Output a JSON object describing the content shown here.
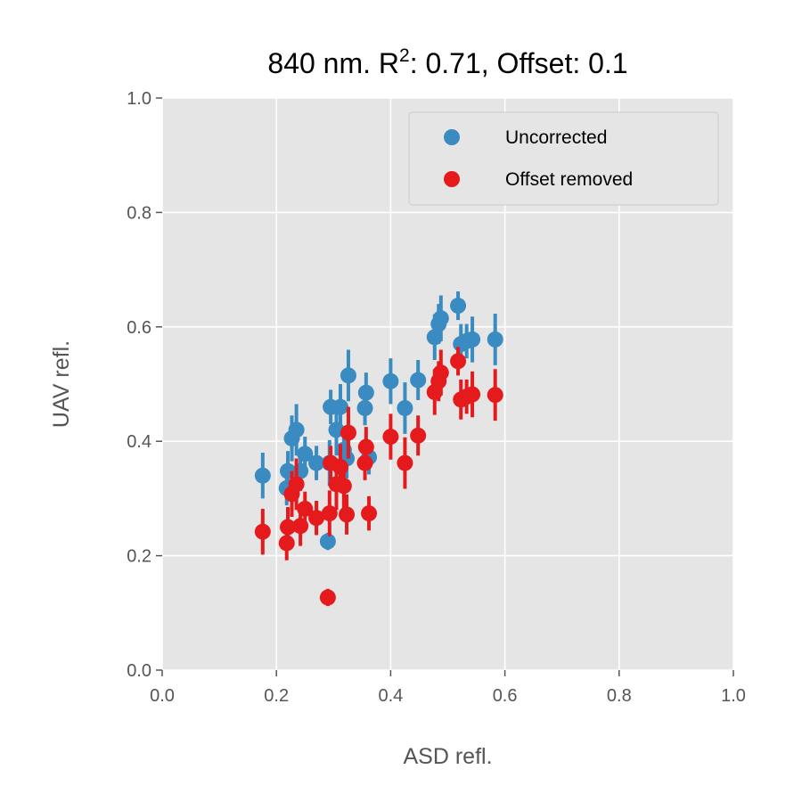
{
  "chart_data": {
    "type": "scatter",
    "title_main": "840 nm. R",
    "title_sup": "2",
    "title_rest": ": 0.71, Offset: 0.1",
    "xlabel": "ASD refl.",
    "ylabel": "UAV refl.",
    "xlim": [
      0,
      1
    ],
    "ylim": [
      0,
      1
    ],
    "xticks": [
      "0.0",
      "0.2",
      "0.4",
      "0.6",
      "0.8",
      "1.0"
    ],
    "yticks": [
      "0.0",
      "0.2",
      "0.4",
      "0.6",
      "0.8",
      "1.0"
    ],
    "grid": true,
    "legend_position": "top-right",
    "series": [
      {
        "name": "Uncorrected",
        "color": "#3a8bc2",
        "points": [
          {
            "x": 0.176,
            "y": 0.34,
            "err": 0.04
          },
          {
            "x": 0.218,
            "y": 0.318,
            "err": 0.03
          },
          {
            "x": 0.22,
            "y": 0.348,
            "err": 0.035
          },
          {
            "x": 0.227,
            "y": 0.405,
            "err": 0.04
          },
          {
            "x": 0.235,
            "y": 0.42,
            "err": 0.045
          },
          {
            "x": 0.242,
            "y": 0.348,
            "err": 0.035
          },
          {
            "x": 0.25,
            "y": 0.378,
            "err": 0.03
          },
          {
            "x": 0.27,
            "y": 0.362,
            "err": 0.03
          },
          {
            "x": 0.29,
            "y": 0.225,
            "err": 0.015
          },
          {
            "x": 0.293,
            "y": 0.362,
            "err": 0.04
          },
          {
            "x": 0.295,
            "y": 0.46,
            "err": 0.03
          },
          {
            "x": 0.305,
            "y": 0.42,
            "err": 0.045
          },
          {
            "x": 0.312,
            "y": 0.46,
            "err": 0.04
          },
          {
            "x": 0.318,
            "y": 0.385,
            "err": 0.04
          },
          {
            "x": 0.323,
            "y": 0.37,
            "err": 0.035
          },
          {
            "x": 0.326,
            "y": 0.515,
            "err": 0.045
          },
          {
            "x": 0.355,
            "y": 0.458,
            "err": 0.03
          },
          {
            "x": 0.357,
            "y": 0.485,
            "err": 0.035
          },
          {
            "x": 0.362,
            "y": 0.372,
            "err": 0.03
          },
          {
            "x": 0.4,
            "y": 0.505,
            "err": 0.04
          },
          {
            "x": 0.425,
            "y": 0.458,
            "err": 0.045
          },
          {
            "x": 0.448,
            "y": 0.507,
            "err": 0.035
          },
          {
            "x": 0.477,
            "y": 0.582,
            "err": 0.04
          },
          {
            "x": 0.484,
            "y": 0.605,
            "err": 0.035
          },
          {
            "x": 0.488,
            "y": 0.615,
            "err": 0.04
          },
          {
            "x": 0.518,
            "y": 0.637,
            "err": 0.025
          },
          {
            "x": 0.523,
            "y": 0.57,
            "err": 0.035
          },
          {
            "x": 0.533,
            "y": 0.575,
            "err": 0.03
          },
          {
            "x": 0.543,
            "y": 0.578,
            "err": 0.04
          },
          {
            "x": 0.583,
            "y": 0.578,
            "err": 0.045
          }
        ]
      },
      {
        "name": "Offset removed",
        "color": "#e41a1c",
        "points": [
          {
            "x": 0.176,
            "y": 0.242,
            "err": 0.04
          },
          {
            "x": 0.218,
            "y": 0.222,
            "err": 0.03
          },
          {
            "x": 0.22,
            "y": 0.25,
            "err": 0.035
          },
          {
            "x": 0.227,
            "y": 0.308,
            "err": 0.04
          },
          {
            "x": 0.235,
            "y": 0.325,
            "err": 0.045
          },
          {
            "x": 0.242,
            "y": 0.252,
            "err": 0.035
          },
          {
            "x": 0.25,
            "y": 0.282,
            "err": 0.03
          },
          {
            "x": 0.27,
            "y": 0.266,
            "err": 0.03
          },
          {
            "x": 0.29,
            "y": 0.127,
            "err": 0.015
          },
          {
            "x": 0.293,
            "y": 0.274,
            "err": 0.04
          },
          {
            "x": 0.295,
            "y": 0.362,
            "err": 0.03
          },
          {
            "x": 0.305,
            "y": 0.325,
            "err": 0.045
          },
          {
            "x": 0.312,
            "y": 0.355,
            "err": 0.04
          },
          {
            "x": 0.318,
            "y": 0.322,
            "err": 0.04
          },
          {
            "x": 0.323,
            "y": 0.272,
            "err": 0.035
          },
          {
            "x": 0.326,
            "y": 0.415,
            "err": 0.045
          },
          {
            "x": 0.355,
            "y": 0.362,
            "err": 0.03
          },
          {
            "x": 0.357,
            "y": 0.39,
            "err": 0.035
          },
          {
            "x": 0.362,
            "y": 0.274,
            "err": 0.03
          },
          {
            "x": 0.4,
            "y": 0.408,
            "err": 0.04
          },
          {
            "x": 0.425,
            "y": 0.362,
            "err": 0.045
          },
          {
            "x": 0.448,
            "y": 0.41,
            "err": 0.035
          },
          {
            "x": 0.477,
            "y": 0.486,
            "err": 0.04
          },
          {
            "x": 0.484,
            "y": 0.505,
            "err": 0.035
          },
          {
            "x": 0.488,
            "y": 0.52,
            "err": 0.04
          },
          {
            "x": 0.518,
            "y": 0.54,
            "err": 0.025
          },
          {
            "x": 0.523,
            "y": 0.473,
            "err": 0.035
          },
          {
            "x": 0.533,
            "y": 0.478,
            "err": 0.03
          },
          {
            "x": 0.543,
            "y": 0.482,
            "err": 0.04
          },
          {
            "x": 0.583,
            "y": 0.481,
            "err": 0.045
          }
        ]
      }
    ]
  }
}
